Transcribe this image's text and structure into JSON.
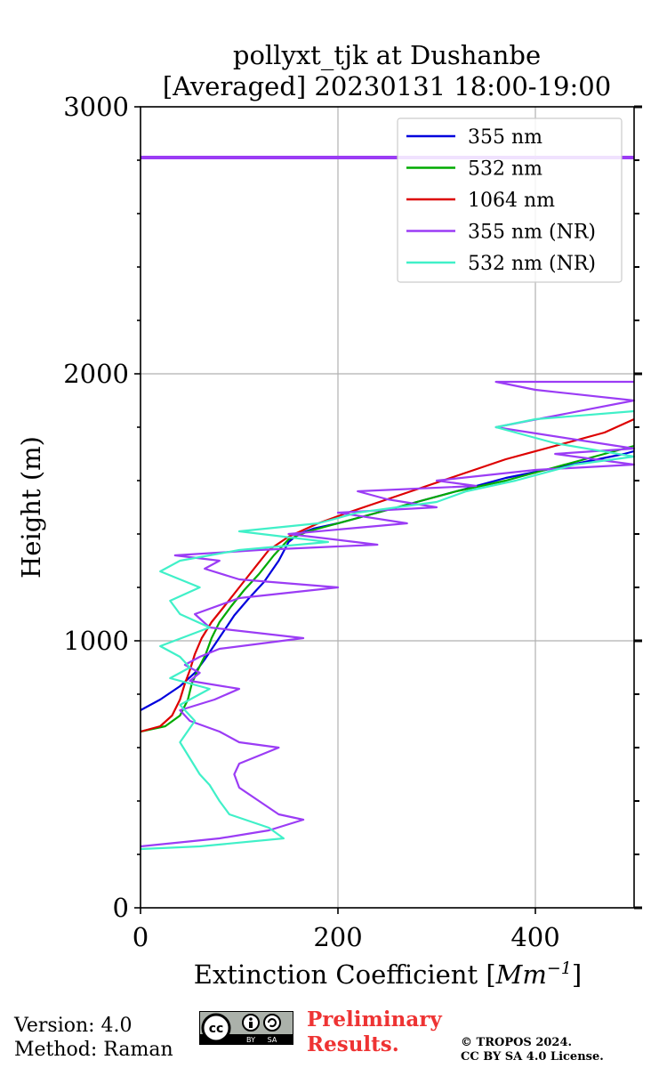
{
  "chart_data": {
    "type": "line",
    "title_line1": "pollyxt_tjk at Dushanbe",
    "title_line2": "[Averaged] 20230131 18:00-19:00",
    "xlabel_text": "Extinction Coefficient [",
    "xlabel_unit": "Mm",
    "xlabel_exp": "−1",
    "xlabel_close": "]",
    "ylabel": "Height (m)",
    "xlim": [
      0,
      500
    ],
    "ylim": [
      0,
      3000
    ],
    "xticks": [
      "0",
      "200",
      "400"
    ],
    "xtick_values": [
      0,
      200,
      400
    ],
    "yticks": [
      "0",
      "1000",
      "2000",
      "3000"
    ],
    "ytick_values": [
      0,
      1000,
      2000,
      3000
    ],
    "grid": true,
    "legend_position": "top-right",
    "series": [
      {
        "name": "355 nm",
        "color": "#0000dd",
        "points": [
          [
            0,
            740
          ],
          [
            20,
            780
          ],
          [
            40,
            830
          ],
          [
            55,
            880
          ],
          [
            65,
            930
          ],
          [
            75,
            985
          ],
          [
            85,
            1040
          ],
          [
            95,
            1095
          ],
          [
            110,
            1160
          ],
          [
            125,
            1220
          ],
          [
            140,
            1300
          ],
          [
            150,
            1370
          ],
          [
            160,
            1400
          ],
          [
            175,
            1420
          ],
          [
            200,
            1440
          ],
          [
            230,
            1470
          ],
          [
            270,
            1510
          ],
          [
            320,
            1560
          ],
          [
            370,
            1610
          ],
          [
            410,
            1640
          ],
          [
            450,
            1670
          ],
          [
            490,
            1700
          ],
          [
            500,
            1710
          ]
        ]
      },
      {
        "name": "532 nm",
        "color": "#00aa00",
        "points": [
          [
            0,
            660
          ],
          [
            25,
            680
          ],
          [
            40,
            720
          ],
          [
            48,
            780
          ],
          [
            52,
            840
          ],
          [
            58,
            890
          ],
          [
            66,
            950
          ],
          [
            72,
            1010
          ],
          [
            80,
            1070
          ],
          [
            92,
            1130
          ],
          [
            105,
            1190
          ],
          [
            120,
            1250
          ],
          [
            135,
            1320
          ],
          [
            150,
            1380
          ],
          [
            170,
            1410
          ],
          [
            200,
            1440
          ],
          [
            240,
            1480
          ],
          [
            280,
            1520
          ],
          [
            320,
            1560
          ],
          [
            370,
            1600
          ],
          [
            420,
            1650
          ],
          [
            470,
            1700
          ],
          [
            500,
            1730
          ]
        ]
      },
      {
        "name": "1064 nm",
        "color": "#dd0000",
        "points": [
          [
            0,
            660
          ],
          [
            20,
            680
          ],
          [
            32,
            720
          ],
          [
            40,
            780
          ],
          [
            45,
            840
          ],
          [
            50,
            890
          ],
          [
            55,
            950
          ],
          [
            62,
            1010
          ],
          [
            72,
            1070
          ],
          [
            85,
            1130
          ],
          [
            100,
            1200
          ],
          [
            115,
            1270
          ],
          [
            130,
            1340
          ],
          [
            150,
            1390
          ],
          [
            180,
            1440
          ],
          [
            210,
            1480
          ],
          [
            250,
            1530
          ],
          [
            290,
            1580
          ],
          [
            330,
            1630
          ],
          [
            370,
            1680
          ],
          [
            420,
            1730
          ],
          [
            470,
            1780
          ],
          [
            500,
            1830
          ]
        ]
      },
      {
        "name": "355 nm (NR)",
        "color": "#9b3cf5",
        "points": [
          [
            0,
            230
          ],
          [
            80,
            260
          ],
          [
            130,
            290
          ],
          [
            165,
            330
          ],
          [
            140,
            350
          ],
          [
            120,
            400
          ],
          [
            100,
            450
          ],
          [
            95,
            500
          ],
          [
            100,
            540
          ],
          [
            140,
            600
          ],
          [
            100,
            620
          ],
          [
            80,
            660
          ],
          [
            50,
            700
          ],
          [
            40,
            740
          ],
          [
            75,
            780
          ],
          [
            100,
            820
          ],
          [
            50,
            850
          ],
          [
            60,
            880
          ],
          [
            45,
            910
          ],
          [
            60,
            940
          ],
          [
            80,
            970
          ],
          [
            165,
            1010
          ],
          [
            70,
            1050
          ],
          [
            55,
            1100
          ],
          [
            100,
            1160
          ],
          [
            200,
            1200
          ],
          [
            100,
            1230
          ],
          [
            65,
            1270
          ],
          [
            80,
            1300
          ],
          [
            35,
            1320
          ],
          [
            120,
            1340
          ],
          [
            240,
            1360
          ],
          [
            150,
            1400
          ],
          [
            270,
            1440
          ],
          [
            200,
            1480
          ],
          [
            300,
            1500
          ],
          [
            250,
            1530
          ],
          [
            220,
            1560
          ],
          [
            340,
            1580
          ],
          [
            300,
            1600
          ],
          [
            400,
            1640
          ],
          [
            500,
            1660
          ],
          [
            420,
            1700
          ],
          [
            500,
            1720
          ],
          [
            360,
            1800
          ],
          [
            500,
            1900
          ],
          [
            400,
            1940
          ],
          [
            360,
            1970
          ],
          [
            500,
            1970
          ]
        ]
      },
      {
        "name": "532 nm (NR)",
        "color": "#40f0c8",
        "points": [
          [
            0,
            220
          ],
          [
            60,
            230
          ],
          [
            145,
            260
          ],
          [
            130,
            300
          ],
          [
            90,
            350
          ],
          [
            80,
            400
          ],
          [
            70,
            460
          ],
          [
            60,
            500
          ],
          [
            50,
            560
          ],
          [
            40,
            620
          ],
          [
            55,
            700
          ],
          [
            40,
            760
          ],
          [
            70,
            820
          ],
          [
            30,
            860
          ],
          [
            50,
            900
          ],
          [
            40,
            940
          ],
          [
            20,
            980
          ],
          [
            70,
            1050
          ],
          [
            40,
            1100
          ],
          [
            30,
            1150
          ],
          [
            60,
            1200
          ],
          [
            20,
            1260
          ],
          [
            40,
            1300
          ],
          [
            100,
            1340
          ],
          [
            190,
            1370
          ],
          [
            100,
            1410
          ],
          [
            180,
            1440
          ],
          [
            220,
            1480
          ],
          [
            260,
            1500
          ],
          [
            300,
            1520
          ],
          [
            330,
            1560
          ],
          [
            380,
            1600
          ],
          [
            440,
            1660
          ],
          [
            500,
            1690
          ],
          [
            420,
            1740
          ],
          [
            360,
            1800
          ],
          [
            400,
            1830
          ],
          [
            500,
            1860
          ]
        ]
      }
    ]
  },
  "footer": {
    "version": "Version: 4.0",
    "method": "Method: Raman",
    "license_badge": "cc-by-sa-icon",
    "prelim_line1": "Preliminary",
    "prelim_line2": "Results.",
    "copyright_line1": "© TROPOS 2024.",
    "copyright_line2": "CC BY SA 4.0 License."
  }
}
